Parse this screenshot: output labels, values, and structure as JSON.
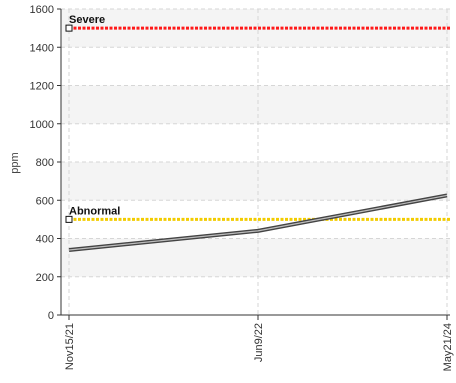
{
  "chart_data": {
    "type": "line",
    "x": [
      "Nov15/21",
      "Jun9/22",
      "May21/24"
    ],
    "ylabel": "ppm",
    "xlabel": "",
    "ylim": [
      0,
      1600
    ],
    "yticks": [
      0,
      200,
      400,
      600,
      800,
      1000,
      1200,
      1400,
      1600
    ],
    "grid": true,
    "alternating_bands": true,
    "series": [
      {
        "values": [
          340,
          440,
          625
        ],
        "color": "#444444"
      }
    ],
    "reference_lines": [
      {
        "label": "Severe",
        "value": 1500,
        "color": "#ff1a1a"
      },
      {
        "label": "Abnormal",
        "value": 500,
        "color": "#f2cc00"
      }
    ]
  }
}
